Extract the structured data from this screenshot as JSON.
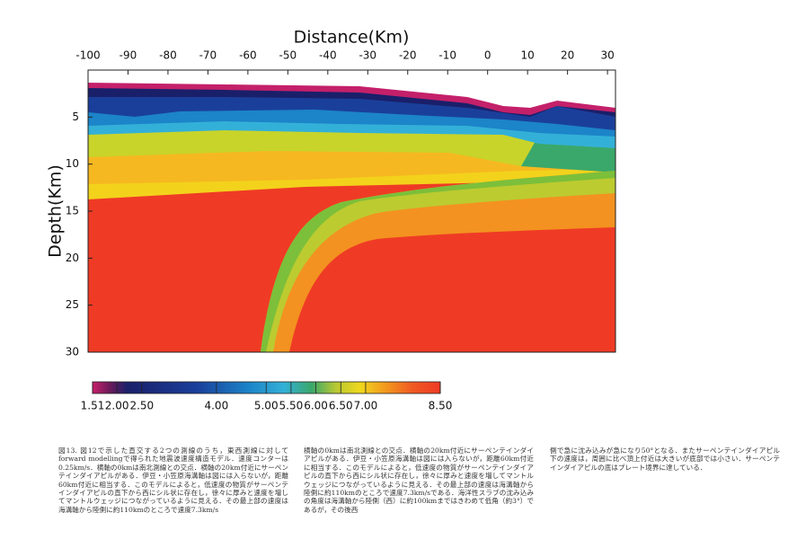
{
  "figure": {
    "x_axis_title": "Distance(Km)",
    "y_axis_title": "Depth(Km)",
    "xlim": [
      -100,
      32
    ],
    "xticks": [
      -100,
      -90,
      -80,
      -70,
      -60,
      -50,
      -40,
      -30,
      -20,
      -10,
      0,
      10,
      20,
      30
    ],
    "ylim": [
      0,
      30
    ],
    "yticks": [
      5,
      10,
      15,
      20,
      25,
      30
    ],
    "colorbar": {
      "lim": [
        1.51,
        8.5
      ],
      "ticks": [
        1.51,
        {
          "value": 2,
          "label": "2.00"
        },
        {
          "value": 2.5,
          "label": "2.50"
        },
        {
          "value": 4,
          "label": "4.00"
        },
        {
          "value": 5,
          "label": "5.00"
        },
        {
          "value": 5.5,
          "label": "5.50"
        },
        {
          "value": 6,
          "label": "6.00"
        },
        {
          "value": 6.5,
          "label": "6.50"
        },
        {
          "value": 7,
          "label": "7.00"
        },
        {
          "value": 8.5,
          "label": "8.50"
        }
      ]
    }
  },
  "caption": [
    "図13. 図12で示した直交する2つの測線のうち，東西測線に対してforward modellingで得られた地震波速度構造モデル．速度コンターは0.25km/s．横軸の0kmは南北測線との交点．横軸の20km付近にサーペンテインダイアピルがある．伊豆・小笠原海溝軸は図には入らないが，距離60km付近に相当する．このモデルによると，低速度の物質がサーペンテインダイアピルの直下から西にシル状に存在し，徐々に厚みと速度を増してマントルウェッジにつながっているように見える．その最上部の速度は海溝軸から陸側に約110kmのところで速度7.3km/s",
    "横軸の0kmは南北測線との交点．横軸の20km付近にサーペンテインダイアピルがある．伊豆・小笠原海溝軸は図には入らないが，距離60km付近に相当する．このモデルによると，低速度の物質がサーペンテインダイアピルの直下から西にシル状に存在し，徐々に厚みと速度を増してマントルウェッジにつながっているように見える．その最上部の速度は海溝軸から陸側に約110kmのところで速度7.3km/sである．海洋性スラブの沈み込みの角度は海溝軸から陸側（西）に約100kmまではきわめて低角（約3°）であるが，その後西",
    "側で急に沈み込みが急になり50°となる．またサーペンテインダイアピル下の速度は，周囲に比べ頂上付近は大きいが底部では小さい．サーペンテインダイアピルの底はプレート境界に達している．"
  ]
}
